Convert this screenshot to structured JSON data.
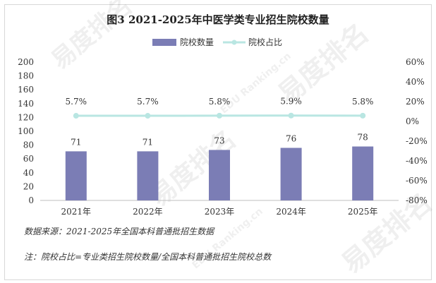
{
  "chart_data": {
    "type": "bar+line",
    "title": "图3  2021-2025年中医学类专业招生院校数量",
    "categories": [
      "2021年",
      "2022年",
      "2023年",
      "2024年",
      "2025年"
    ],
    "series": [
      {
        "name": "院校数量",
        "type": "bar",
        "axis": "left",
        "values": [
          71,
          71,
          73,
          76,
          78
        ],
        "labels": [
          "71",
          "71",
          "73",
          "76",
          "78"
        ],
        "color": "#7b7db5"
      },
      {
        "name": "院校占比",
        "type": "line",
        "axis": "right",
        "values": [
          5.7,
          5.7,
          5.8,
          5.9,
          5.8
        ],
        "labels": [
          "5.7%",
          "5.7%",
          "5.8%",
          "5.9%",
          "5.8%"
        ],
        "color": "#b9e6e2"
      }
    ],
    "y_left": {
      "min": 0,
      "max": 200,
      "ticks": [
        "0",
        "20",
        "40",
        "60",
        "80",
        "100",
        "120",
        "140",
        "160",
        "180",
        "200"
      ]
    },
    "y_right": {
      "min": -80,
      "max": 60,
      "ticks": [
        "-80%",
        "-60%",
        "-40%",
        "-20%",
        "0%",
        "20%",
        "40%",
        "60%"
      ]
    },
    "legend_position": "top-center",
    "grid": false
  },
  "notes": {
    "source": "数据来源：2021-2025年全国本科普通批招生数据",
    "formula": "注：院校占比=专业类招生院校数量/全国本科普通批招生院校总数"
  },
  "watermark": {
    "text_cn": "易度排名",
    "text_en": "EDU Ranking.cn"
  }
}
